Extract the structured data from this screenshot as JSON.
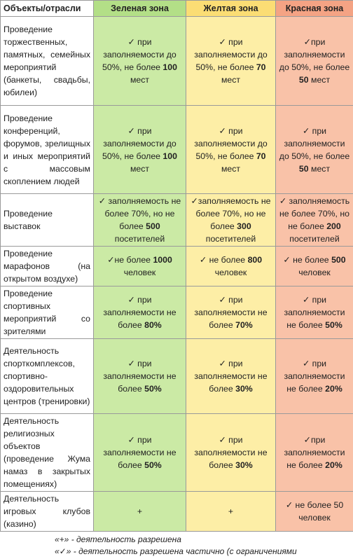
{
  "table": {
    "header": [
      "Объекты/отрасли",
      "Зеленая зона",
      "Желтая зона",
      "Красная зона"
    ],
    "rows": [
      [
        [
          "Проведение торжественных, памятных, семейных мероприятий (банкеты, свадьбы, юбилеи)"
        ],
        [
          "✓ при заполняемости до 50%, не более ",
          "100",
          " мест"
        ],
        [
          "✓ при заполняемости до 50%, не более ",
          "70",
          " мест"
        ],
        [
          "✓при заполняемости до 50%, не более ",
          "50",
          " мест"
        ]
      ],
      [
        [
          "Проведение конференций, форумов, зрелищных и иных мероприятий с массовым скоплением людей"
        ],
        [
          "✓ при заполняемости до 50%, не более ",
          "100",
          " мест"
        ],
        [
          "✓ при заполняемости до 50%, не более ",
          "70",
          " мест"
        ],
        [
          "✓ при заполняемости до 50%, не более ",
          "50",
          " мест"
        ]
      ],
      [
        [
          "Проведение выставок"
        ],
        [
          "✓ заполняемость не более 70%, но не более ",
          "500",
          " посетителей"
        ],
        [
          "✓заполняемость не более 70%, но не более ",
          "300",
          " посетителей"
        ],
        [
          "✓ заполняемость не более 70%, но не более ",
          "200",
          " посетителей"
        ]
      ],
      [
        [
          "Проведение марафонов (на открытом воздухе)"
        ],
        [
          "✓не более ",
          "1000",
          " человек"
        ],
        [
          "✓ не более ",
          "800",
          " человек"
        ],
        [
          "✓ не более ",
          "500",
          " человек"
        ]
      ],
      [
        [
          "Проведение спортивных мероприятий со зрителями"
        ],
        [
          "✓ при заполняемости не более ",
          "80%"
        ],
        [
          "✓ при заполняемости не более ",
          "70%"
        ],
        [
          "✓ при заполняемости не более ",
          "50%"
        ]
      ],
      [
        [
          "Деятельность спорткомплексов, спортивно-оздоровительных центров (тренировки)"
        ],
        [
          "✓ при заполняемости не более ",
          "50%"
        ],
        [
          "✓ при заполняемости не более ",
          "30%"
        ],
        [
          "✓ при заполняемости не более ",
          "20%"
        ]
      ],
      [
        [
          "Деятельность религиозных объектов (проведение Жума намаз в закрытых помещениях)"
        ],
        [
          "✓ при заполняемости не более ",
          "50%"
        ],
        [
          "✓ при заполняемости не более ",
          "30%"
        ],
        [
          "✓при заполняемости не более ",
          "20%"
        ]
      ],
      [
        [
          "Деятельность игровых клубов (казино)"
        ],
        [
          "+"
        ],
        [
          "+"
        ],
        [
          "✓ не более 50 человек"
        ]
      ]
    ]
  },
  "footer": [
    "«+» - деятельность разрешена",
    "«✓» - деятельность разрешена частично (с ограничениями"
  ]
}
